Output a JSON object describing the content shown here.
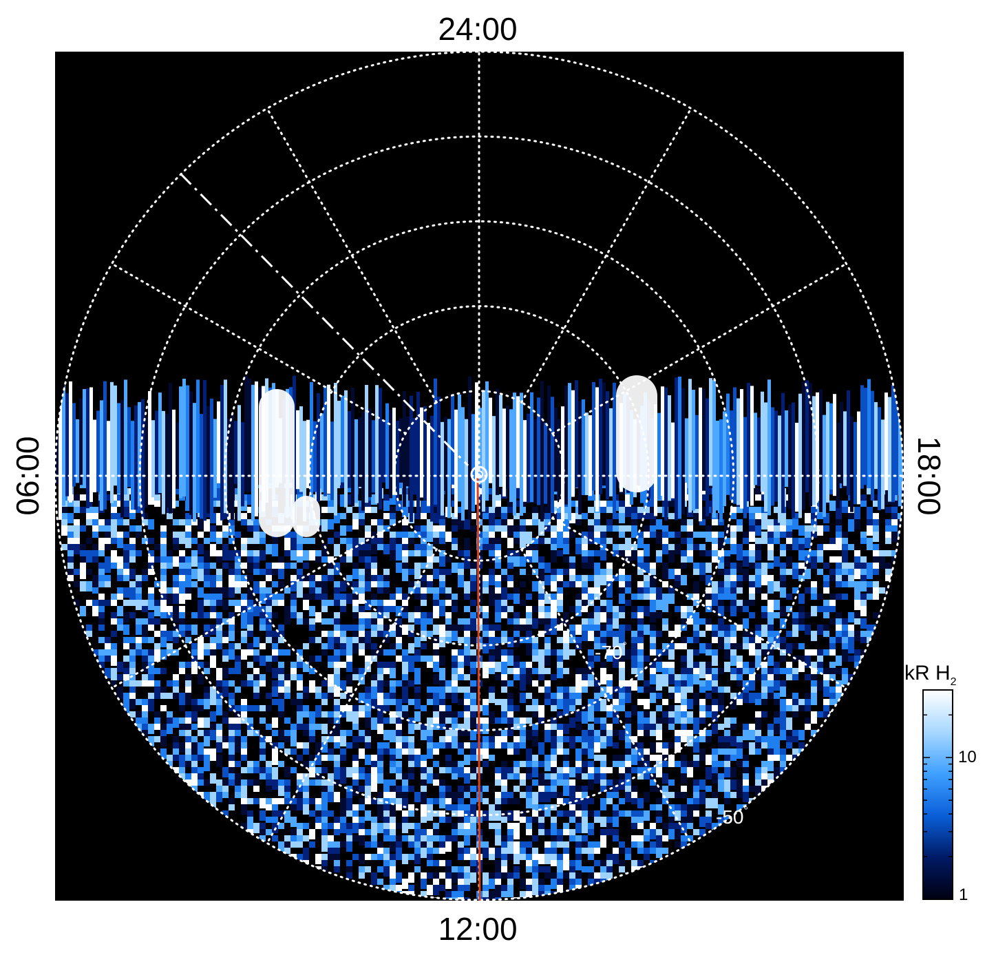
{
  "chart_data": {
    "type": "polar-projection",
    "description_units": "local time (hours) around rim, latitude rings in degrees",
    "local_time_labels": {
      "top": "24:00",
      "bottom": "12:00",
      "left": "06:00",
      "right": "18:00"
    },
    "latitude_labels": [
      {
        "value": -70,
        "text": "-70",
        "degree": "°"
      },
      {
        "value": -50,
        "text": "-50",
        "degree": "°"
      }
    ],
    "latitude_rings": [
      -80,
      -70,
      -60,
      -50,
      -40
    ],
    "meridians_every_hours": 2,
    "grid": true,
    "colorbar": {
      "title": "kR H",
      "title_subscript": "2",
      "scale": "log",
      "range": [
        1,
        30
      ],
      "ticks": [
        {
          "value": 1,
          "label": "1"
        },
        {
          "value": 10,
          "label": "10"
        }
      ],
      "colors": [
        "#000010",
        "#001a66",
        "#0a5fd9",
        "#3fa0ff",
        "#a8d8ff",
        "#ffffff"
      ]
    },
    "annotations": {
      "noon_line_color": "#d8421b",
      "pole_marker": "circle"
    }
  }
}
